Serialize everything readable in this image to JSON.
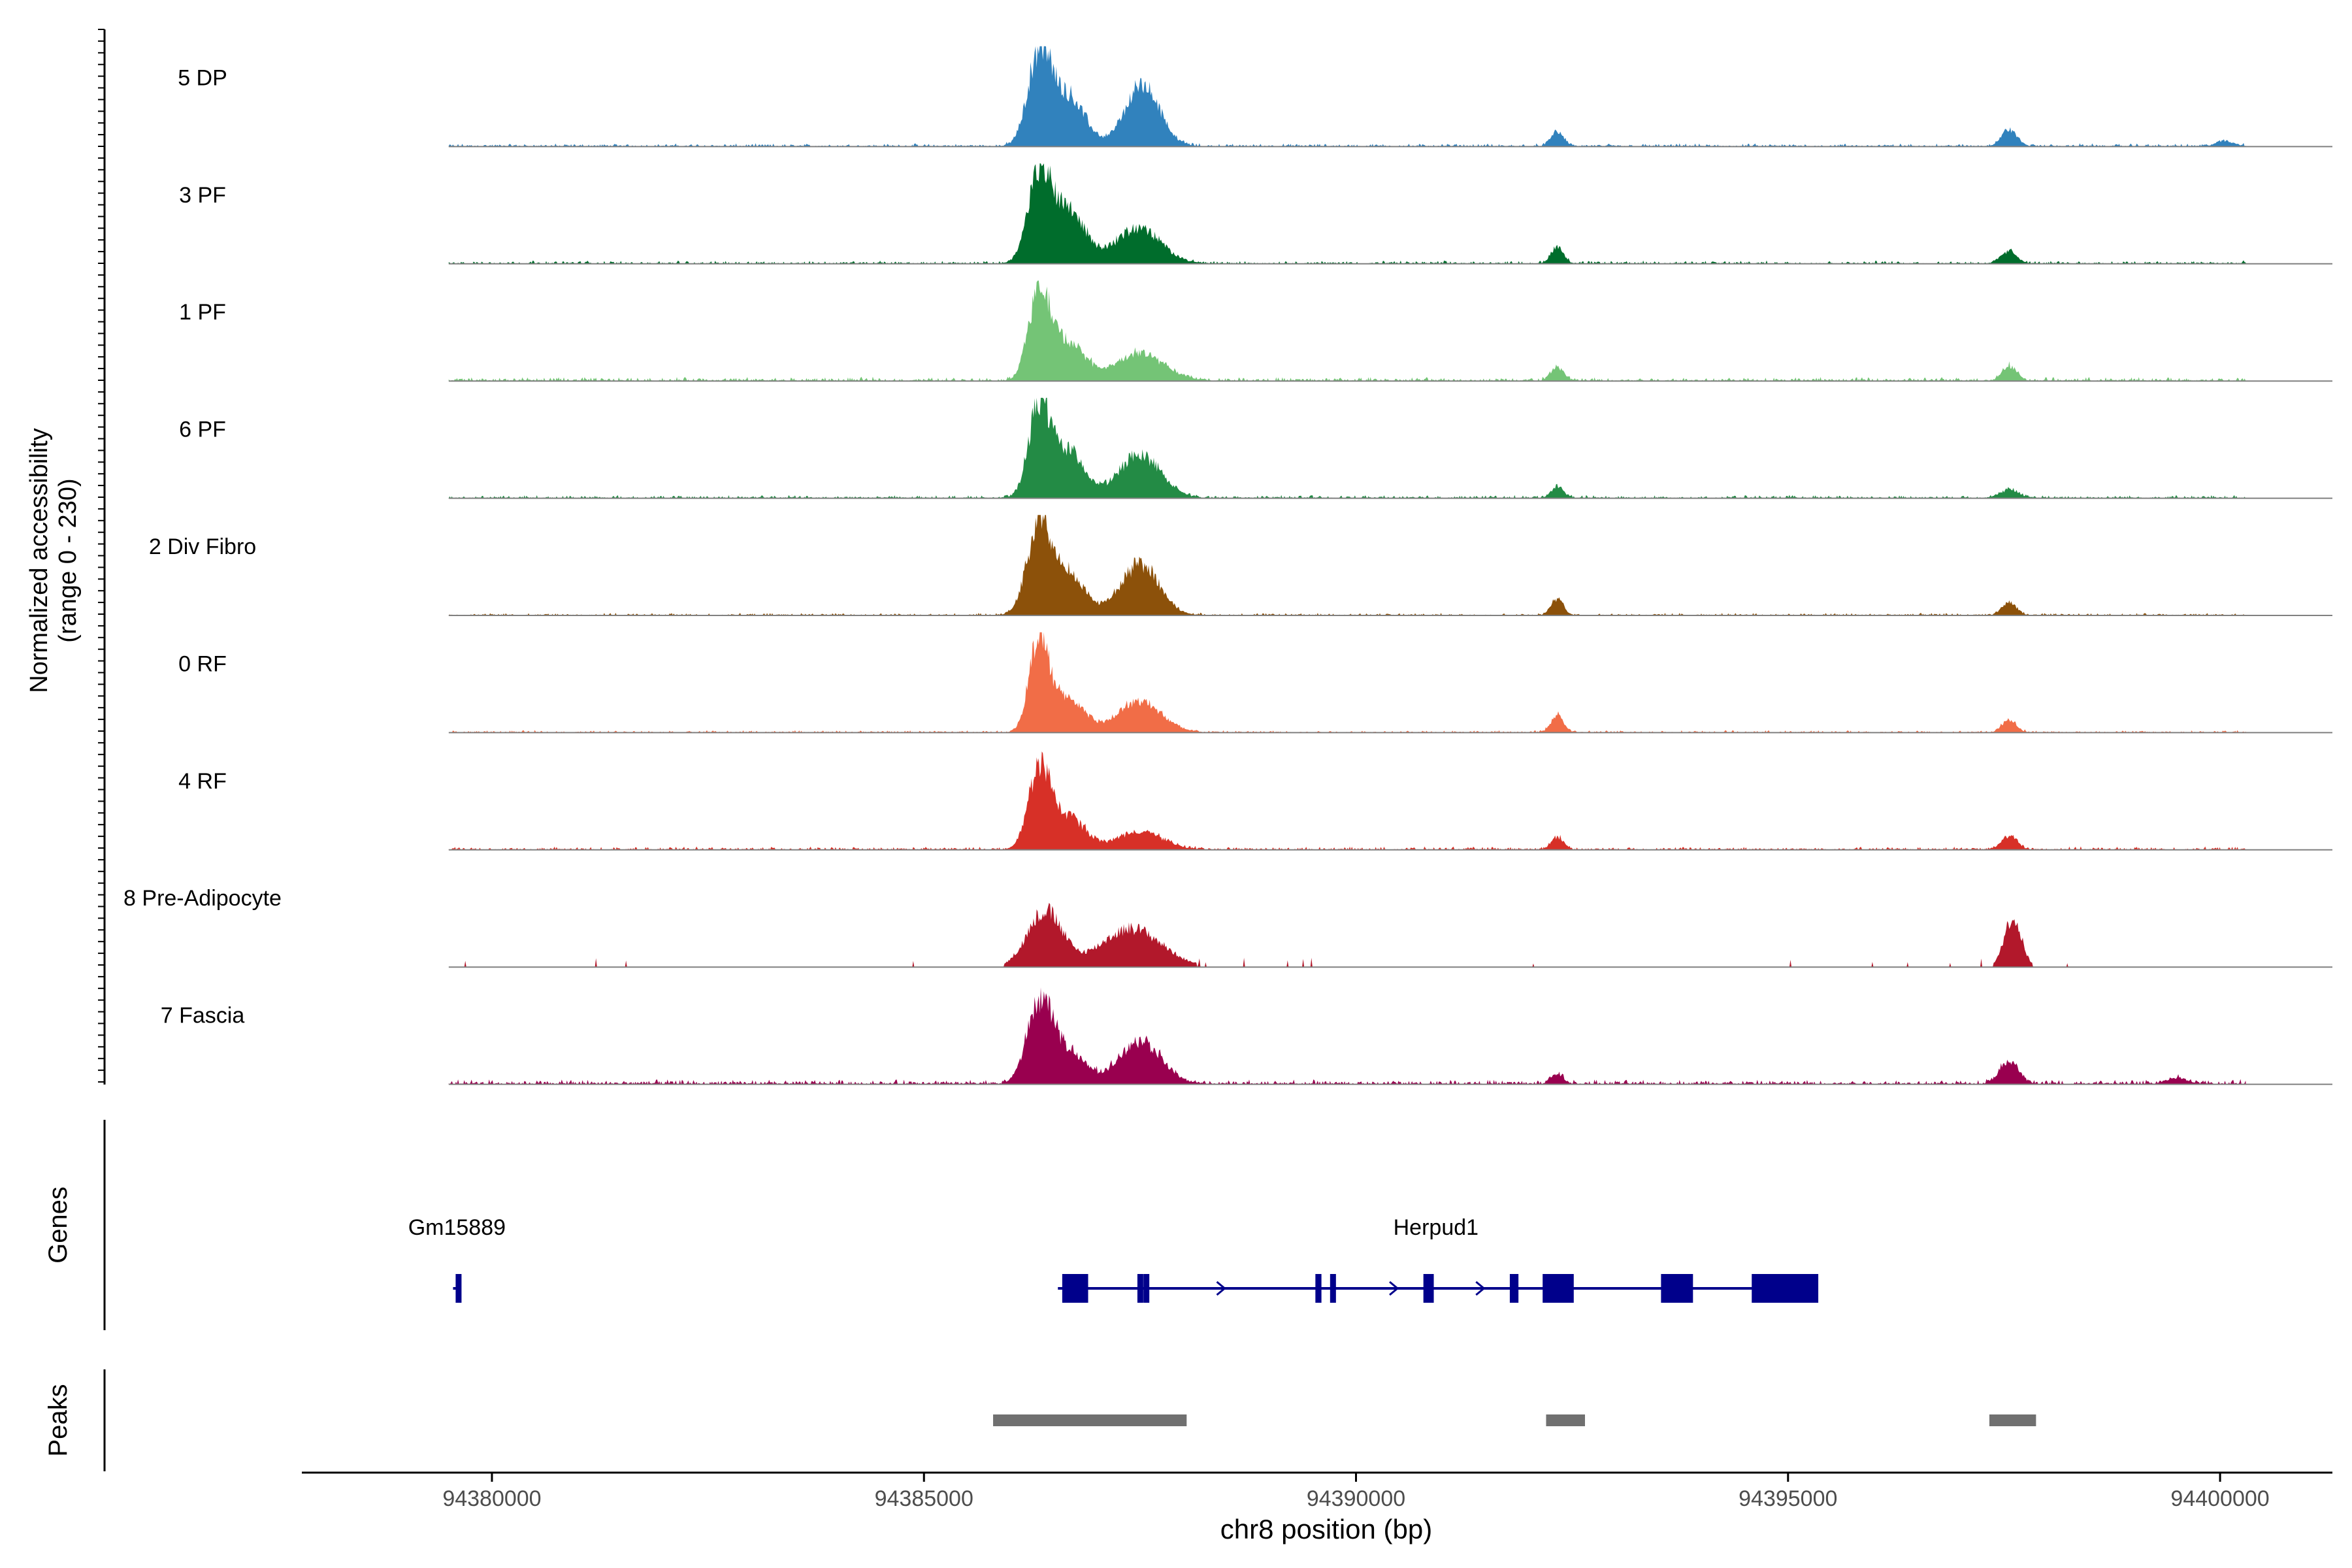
{
  "chart_data": {
    "type": "area",
    "title": "",
    "xlabel": "chr8 position (bp)",
    "xlim": [
      94377800,
      94401300
    ],
    "x_ticks": [
      94380000,
      94385000,
      94390000,
      94395000,
      94400000
    ],
    "x_tick_labels": [
      "94380000",
      "94385000",
      "94390000",
      "94395000",
      "94400000"
    ],
    "ylabel_line1": "Normalized accessibility",
    "ylabel_line2": "(range 0 - 230)",
    "ylim": [
      0,
      230
    ],
    "track_start": 94379500,
    "track_end": 94400300,
    "tracks": [
      {
        "name": "5 DP",
        "color": "#3182BD",
        "peaks": [
          [
            94386330,
            200,
            130
          ],
          [
            94386650,
            120,
            200
          ],
          [
            94387530,
            140,
            200
          ],
          [
            94392330,
            35,
            70
          ],
          [
            94397560,
            38,
            90
          ],
          [
            94400060,
            12,
            100
          ]
        ],
        "baseline": 4,
        "sparse": false
      },
      {
        "name": "3 PF",
        "color": "#006D2C",
        "peaks": [
          [
            94386330,
            185,
            130
          ],
          [
            94386650,
            130,
            200
          ],
          [
            94387480,
            82,
            260
          ],
          [
            94392330,
            40,
            70
          ],
          [
            94397560,
            28,
            90
          ]
        ],
        "baseline": 4,
        "sparse": false
      },
      {
        "name": "1 PF",
        "color": "#74C476",
        "peaks": [
          [
            94386330,
            200,
            120
          ],
          [
            94386650,
            90,
            200
          ],
          [
            94387500,
            62,
            280
          ],
          [
            94392330,
            32,
            70
          ],
          [
            94397560,
            35,
            80
          ]
        ],
        "baseline": 5,
        "sparse": false
      },
      {
        "name": "6 PF",
        "color": "#238B45",
        "peaks": [
          [
            94386330,
            195,
            120
          ],
          [
            94386650,
            110,
            200
          ],
          [
            94387500,
            100,
            240
          ],
          [
            94392330,
            26,
            70
          ],
          [
            94397560,
            18,
            110
          ]
        ],
        "baseline": 4,
        "sparse": false
      },
      {
        "name": "2 Div Fibro",
        "color": "#8C510A",
        "peaks": [
          [
            94386330,
            195,
            140
          ],
          [
            94386650,
            100,
            200
          ],
          [
            94387500,
            120,
            220
          ],
          [
            94392330,
            38,
            70
          ],
          [
            94397560,
            30,
            80
          ]
        ],
        "baseline": 3,
        "sparse": false
      },
      {
        "name": "0 RF",
        "color": "#F16D47",
        "peaks": [
          [
            94386330,
            210,
            110
          ],
          [
            94386650,
            80,
            200
          ],
          [
            94387500,
            72,
            250
          ],
          [
            94392330,
            42,
            70
          ],
          [
            94397560,
            30,
            80
          ]
        ],
        "baseline": 3,
        "sparse": false
      },
      {
        "name": "4 RF",
        "color": "#D73027",
        "peaks": [
          [
            94386330,
            180,
            120
          ],
          [
            94386650,
            80,
            200
          ],
          [
            94387500,
            42,
            260
          ],
          [
            94392330,
            30,
            70
          ],
          [
            94397560,
            32,
            90
          ]
        ],
        "baseline": 4,
        "sparse": false
      },
      {
        "name": "8 Pre-Adipocyte",
        "color": "#B2182B",
        "peaks": [
          [
            94386400,
            130,
            200
          ],
          [
            94387400,
            90,
            350
          ],
          [
            94397600,
            115,
            100
          ]
        ],
        "baseline": 0,
        "sparse": true
      },
      {
        "name": "7 Fascia",
        "color": "#99004F",
        "peaks": [
          [
            94386330,
            175,
            140
          ],
          [
            94386650,
            80,
            200
          ],
          [
            94387500,
            100,
            240
          ],
          [
            94392330,
            22,
            70
          ],
          [
            94397560,
            50,
            110
          ],
          [
            94399500,
            14,
            120
          ]
        ],
        "baseline": 6,
        "sparse": false
      }
    ],
    "genes": [
      {
        "name": "Gm15889",
        "start": 94379550,
        "end": 94379640,
        "exons": [
          [
            94379580,
            94379620
          ]
        ],
        "strand": "+"
      },
      {
        "name": "Herpud1",
        "start": 94386550,
        "end": 94395300,
        "exons": [
          [
            94386600,
            94386900
          ],
          [
            94387470,
            94387500
          ],
          [
            94387540,
            94387580
          ],
          [
            94389530,
            94389600
          ],
          [
            94389700,
            94389760
          ],
          [
            94390780,
            94390900
          ],
          [
            94391780,
            94391880
          ],
          [
            94392160,
            94392520
          ],
          [
            94393530,
            94393900
          ],
          [
            94394580,
            94395350
          ]
        ],
        "strand": "+"
      }
    ],
    "genes_label": "Genes",
    "peaks_label": "Peaks",
    "peak_regions": [
      [
        94385800,
        94388040
      ],
      [
        94392200,
        94392650
      ],
      [
        94397330,
        94397870
      ]
    ],
    "colors": {
      "axis": "#000000",
      "baseline": "#808080",
      "gene": "#00008B",
      "peak_region": "#707070"
    }
  }
}
